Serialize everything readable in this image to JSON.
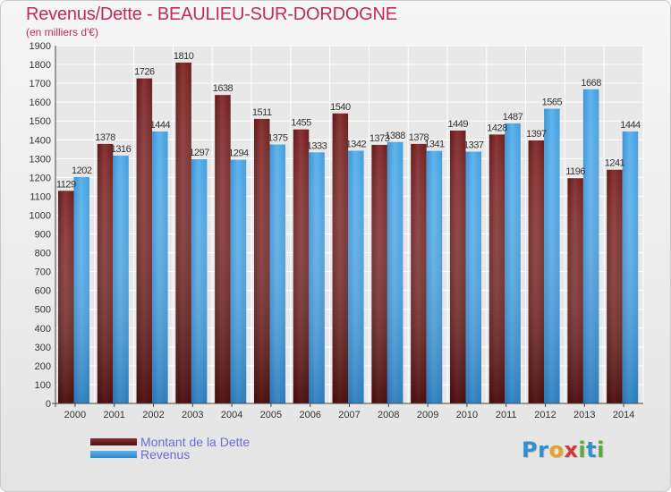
{
  "header": {
    "title": "Revenus/Dette - BEAULIEU-SUR-DORDOGNE",
    "subtitle": "(en milliers d'€)"
  },
  "colors": {
    "title": "#bf2a63",
    "dette_bar": "#7b2a2a",
    "revenus_bar": "#4fa8e6",
    "legend_text": "#6b6bd9",
    "grid": "#ffffff"
  },
  "legend": {
    "items": [
      {
        "label": "Montant de la Dette",
        "color": "#7b2a2a"
      },
      {
        "label": "Revenus",
        "color": "#4fa8e6"
      }
    ]
  },
  "logo": {
    "text": "Proxiti",
    "letters": [
      {
        "ch": "P",
        "color": "#2f8fd0"
      },
      {
        "ch": "r",
        "color": "#2f8fd0"
      },
      {
        "ch": "o",
        "color": "#e3a32a"
      },
      {
        "ch": "x",
        "color": "#d23a3a"
      },
      {
        "ch": "i",
        "color": "#5aaa3a"
      },
      {
        "ch": "t",
        "color": "#2f8fd0"
      },
      {
        "ch": "i",
        "color": "#5aaa3a"
      }
    ]
  },
  "chart_data": {
    "type": "bar",
    "categories": [
      "2000",
      "2001",
      "2002",
      "2003",
      "2004",
      "2005",
      "2006",
      "2007",
      "2008",
      "2009",
      "2010",
      "2011",
      "2012",
      "2013",
      "2014"
    ],
    "series": [
      {
        "name": "Montant de la Dette",
        "values": [
          1129,
          1378,
          1726,
          1810,
          1638,
          1511,
          1455,
          1540,
          1373,
          1378,
          1449,
          1428,
          1397,
          1196,
          1241
        ],
        "labels": [
          "1129",
          "1378",
          "1726",
          "1810",
          "1638",
          "1511",
          "1455",
          "1540",
          "1373",
          "1378",
          "1449",
          "1428",
          "1397",
          "1196",
          "1241"
        ]
      },
      {
        "name": "Revenus",
        "values": [
          1202,
          1316,
          1444,
          1297,
          1294,
          1375,
          1333,
          1342,
          1388,
          1341,
          1337,
          1487,
          1565,
          1668,
          1444
        ],
        "labels": [
          "1202",
          "1316",
          "1444",
          "1297",
          "1294",
          "1375",
          "1333",
          "1342",
          "1388",
          "1341",
          "1337",
          "1487",
          "1565",
          "1668",
          "1444"
        ]
      }
    ],
    "ylim": [
      0,
      1900
    ],
    "y_ticks": [
      0,
      100,
      200,
      300,
      400,
      500,
      600,
      700,
      800,
      900,
      1000,
      1100,
      1200,
      1300,
      1400,
      1500,
      1600,
      1700,
      1800,
      1900
    ],
    "grid": true,
    "legend_position": "bottom-left"
  }
}
